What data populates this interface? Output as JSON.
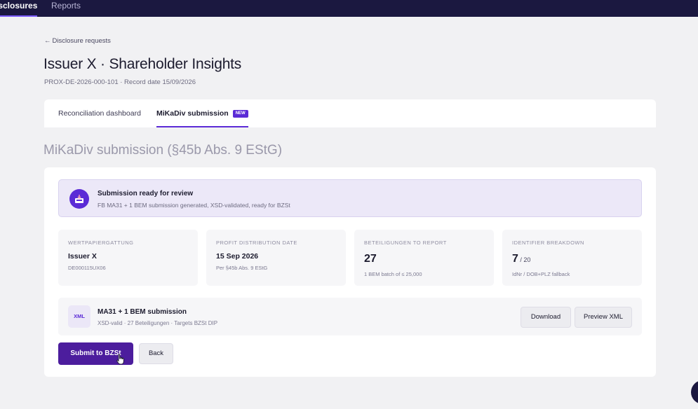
{
  "topnav": {
    "items": [
      {
        "label": "isclosures",
        "active": true
      },
      {
        "label": "Reports",
        "active": false
      }
    ]
  },
  "back_link": {
    "arrow": "←",
    "label": "Disclosure requests"
  },
  "header": {
    "title": "Issuer X · Shareholder Insights",
    "subtitle": "PROX-DE-2026-000-101 · Record date 15/09/2026"
  },
  "tabs": [
    {
      "label": "Reconciliation dashboard",
      "active": false
    },
    {
      "label": "MiKaDiv submission",
      "active": true,
      "badge": "NEW"
    }
  ],
  "section_title": "MiKaDiv submission (§45b Abs. 9 EStG)",
  "banner": {
    "icon": "inbox-tray-icon",
    "title": "Submission ready for review",
    "description": "FB MA31 + 1 BEM submission generated, XSD-validated, ready for BZSt"
  },
  "stats": [
    {
      "label": "WERTPAPIERGATTUNG",
      "value": "Issuer X",
      "suffix": "",
      "sub": "DE000115UX06"
    },
    {
      "label": "PROFIT DISTRIBUTION DATE",
      "value": "15 Sep 2026",
      "suffix": "",
      "sub": "Per §45b Abs. 9 EStG"
    },
    {
      "label": "BETEILIGUNGEN TO REPORT",
      "value": "27",
      "suffix": "",
      "sub": "1 BEM batch of ≤ 25,000"
    },
    {
      "label": "IDENTIFIER BREAKDOWN",
      "value": "7",
      "suffix": " / 20",
      "sub": "IdNr / DOB+PLZ fallback"
    }
  ],
  "file": {
    "badge": "XML",
    "title": "MA31 + 1 BEM submission",
    "description": "XSD-valid · 27 Beteiligungen · Targets BZSt DIP",
    "download_label": "Download",
    "preview_label": "Preview XML"
  },
  "actions": {
    "submit_label": "Submit to BZSt",
    "back_label": "Back"
  },
  "colors": {
    "nav_bg": "#1b1840",
    "accent": "#5b2bd6",
    "primary_button": "#4c1d9d",
    "banner_bg": "#ece8f8"
  }
}
